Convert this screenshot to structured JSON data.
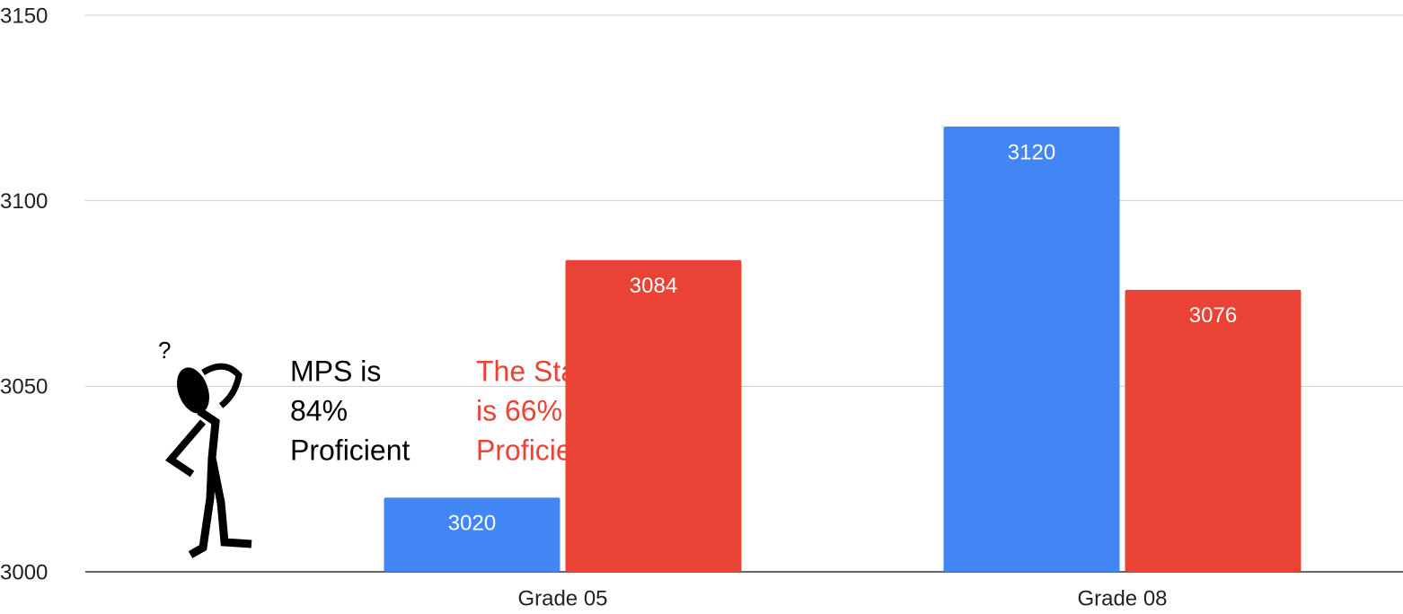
{
  "chart_data": {
    "type": "bar",
    "categories": [
      "Grade 05",
      "Grade 08"
    ],
    "series": [
      {
        "color": "#4285f4",
        "values": [
          3020,
          3120
        ]
      },
      {
        "color": "#ea4335",
        "values": [
          3084,
          3076
        ]
      }
    ],
    "ylim": [
      3000,
      3150
    ],
    "yticks": [
      3000,
      3050,
      3100,
      3150
    ],
    "grid": true,
    "annotations": [
      {
        "lines": [
          "MPS is",
          "84%",
          "Proficient"
        ],
        "color": "#000000"
      },
      {
        "lines": [
          "The State",
          "is 66%",
          "Proficient"
        ],
        "color": "#ea4335"
      }
    ]
  }
}
